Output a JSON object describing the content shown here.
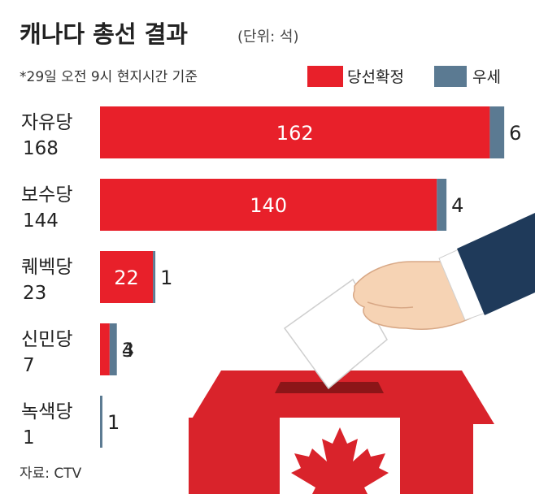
{
  "chart_data": {
    "type": "bar",
    "orientation": "horizontal",
    "stacked": true,
    "title": "캐나다 총선 결과",
    "unit_label": "(단위: 석)",
    "note": "*29일 오전 9시 현지시간 기준",
    "source": "자료: CTV",
    "legend_position": "top-right",
    "categories": [
      "자유당",
      "보수당",
      "퀘벡당",
      "신민당",
      "녹색당"
    ],
    "totals": [
      "168",
      "144",
      "23",
      "7",
      "1"
    ],
    "series": [
      {
        "name": "당선확정",
        "color": "#e8202a",
        "values": [
          162,
          140,
          22,
          4,
          0
        ]
      },
      {
        "name": "우세",
        "color": "#5b7a92",
        "values": [
          6,
          4,
          1,
          3,
          1
        ]
      }
    ],
    "xlim": [
      0,
      172
    ]
  },
  "colors": {
    "confirmed": "#e8202a",
    "leading": "#5b7a92",
    "suit": "#1f3a5a",
    "skin": "#f6d3b4",
    "box_red": "#d9232b"
  }
}
